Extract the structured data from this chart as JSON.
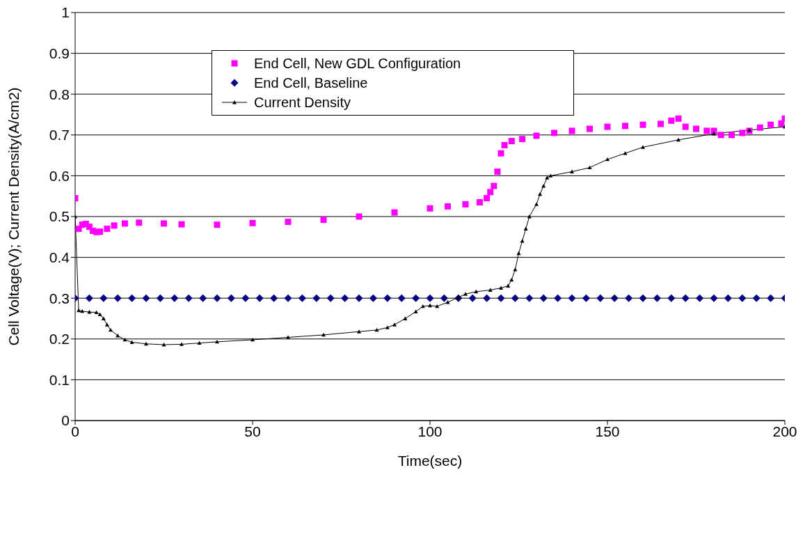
{
  "chart_data": {
    "type": "scatter",
    "xlabel": "Time(sec)",
    "ylabel": "Cell Voltage(V); Current Density(A/cm2)",
    "xlim": [
      0,
      200
    ],
    "xticks": [
      0,
      50,
      100,
      150,
      200
    ],
    "ylim": [
      0,
      1
    ],
    "yticks": [
      0,
      0.1,
      0.2,
      0.3,
      0.4,
      0.5,
      0.6,
      0.7,
      0.8,
      0.9,
      1
    ],
    "grid": "y",
    "legend": "top",
    "series": [
      {
        "name": "End Cell, New GDL Configuration",
        "type": "scatter",
        "marker": "square",
        "color": "#ff00ff",
        "x": [
          0,
          1,
          2,
          3,
          4,
          5,
          6,
          7,
          9,
          11,
          14,
          18,
          25,
          30,
          40,
          50,
          60,
          70,
          80,
          90,
          100,
          105,
          110,
          114,
          116,
          117,
          118,
          119,
          120,
          121,
          123,
          126,
          130,
          135,
          140,
          145,
          150,
          155,
          160,
          165,
          168,
          170,
          172,
          175,
          178,
          180,
          182,
          185,
          188,
          190,
          193,
          196,
          199,
          200
        ],
        "values": [
          0.545,
          0.47,
          0.48,
          0.482,
          0.475,
          0.465,
          0.462,
          0.463,
          0.47,
          0.478,
          0.483,
          0.485,
          0.483,
          0.481,
          0.48,
          0.484,
          0.487,
          0.492,
          0.5,
          0.51,
          0.52,
          0.525,
          0.53,
          0.535,
          0.545,
          0.56,
          0.575,
          0.61,
          0.655,
          0.675,
          0.685,
          0.69,
          0.698,
          0.705,
          0.71,
          0.715,
          0.72,
          0.722,
          0.725,
          0.727,
          0.735,
          0.74,
          0.72,
          0.715,
          0.71,
          0.71,
          0.7,
          0.7,
          0.705,
          0.71,
          0.718,
          0.725,
          0.728,
          0.74
        ]
      },
      {
        "name": "End Cell, Baseline",
        "type": "scatter",
        "marker": "diamond",
        "color": "#000080",
        "x": [
          0,
          4,
          8,
          12,
          16,
          20,
          24,
          28,
          32,
          36,
          40,
          44,
          48,
          52,
          56,
          60,
          64,
          68,
          72,
          76,
          80,
          84,
          88,
          92,
          96,
          100,
          104,
          108,
          112,
          116,
          120,
          124,
          128,
          132,
          136,
          140,
          144,
          148,
          152,
          156,
          160,
          164,
          168,
          172,
          176,
          180,
          184,
          188,
          192,
          196,
          200
        ],
        "values": [
          0.3,
          0.3,
          0.3,
          0.3,
          0.3,
          0.3,
          0.3,
          0.3,
          0.3,
          0.3,
          0.3,
          0.3,
          0.3,
          0.3,
          0.3,
          0.3,
          0.3,
          0.3,
          0.3,
          0.3,
          0.3,
          0.3,
          0.3,
          0.3,
          0.3,
          0.3,
          0.3,
          0.3,
          0.3,
          0.3,
          0.3,
          0.3,
          0.3,
          0.3,
          0.3,
          0.3,
          0.3,
          0.3,
          0.3,
          0.3,
          0.3,
          0.3,
          0.3,
          0.3,
          0.3,
          0.3,
          0.3,
          0.3,
          0.3,
          0.3,
          0.3
        ]
      },
      {
        "name": "Current Density",
        "type": "line",
        "marker": "triangle",
        "color": "#000000",
        "x": [
          0,
          1,
          2,
          4,
          6,
          7,
          8,
          9,
          10,
          12,
          14,
          16,
          20,
          25,
          30,
          35,
          40,
          50,
          60,
          70,
          80,
          85,
          88,
          90,
          93,
          96,
          98,
          100,
          102,
          105,
          108,
          110,
          113,
          117,
          120,
          122,
          123,
          124,
          125,
          126,
          127,
          128,
          130,
          131,
          132,
          133,
          134,
          140,
          145,
          150,
          155,
          160,
          170,
          180,
          190,
          200
        ],
        "values": [
          0.5,
          0.27,
          0.268,
          0.266,
          0.265,
          0.26,
          0.25,
          0.235,
          0.222,
          0.208,
          0.198,
          0.192,
          0.188,
          0.186,
          0.187,
          0.19,
          0.193,
          0.198,
          0.204,
          0.21,
          0.218,
          0.222,
          0.228,
          0.235,
          0.25,
          0.267,
          0.28,
          0.282,
          0.28,
          0.29,
          0.302,
          0.31,
          0.316,
          0.32,
          0.325,
          0.33,
          0.345,
          0.37,
          0.41,
          0.44,
          0.47,
          0.5,
          0.53,
          0.555,
          0.575,
          0.595,
          0.6,
          0.61,
          0.62,
          0.64,
          0.655,
          0.67,
          0.688,
          0.703,
          0.712,
          0.72
        ]
      }
    ]
  }
}
